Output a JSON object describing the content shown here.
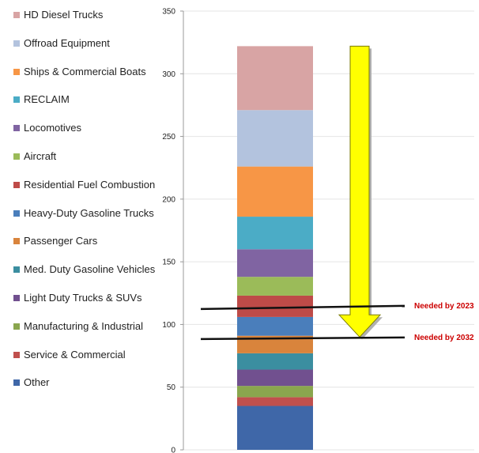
{
  "chart_data": {
    "type": "bar",
    "stacked": true,
    "categories": [
      ""
    ],
    "ylim": [
      0,
      350
    ],
    "yticks": [
      0,
      50,
      100,
      150,
      200,
      250,
      300,
      350
    ],
    "grid": true,
    "legend_position": "left",
    "series": [
      {
        "name": "Other",
        "values": [
          35
        ],
        "color": "#3f67a8"
      },
      {
        "name": "Service & Commercial",
        "values": [
          7
        ],
        "color": "#c0504d"
      },
      {
        "name": "Manufacturing & Industrial",
        "values": [
          9
        ],
        "color": "#8aa64e"
      },
      {
        "name": "Light Duty Trucks & SUVs",
        "values": [
          13
        ],
        "color": "#71508f"
      },
      {
        "name": "Med. Duty Gasoline Vehicles",
        "values": [
          13
        ],
        "color": "#3b8ea0"
      },
      {
        "name": "Passenger Cars",
        "values": [
          14
        ],
        "color": "#d9843c"
      },
      {
        "name": "Heavy-Duty Gasoline Trucks",
        "values": [
          15
        ],
        "color": "#4a7ebb"
      },
      {
        "name": "Residential Fuel Combustion",
        "values": [
          17
        ],
        "color": "#be4b48"
      },
      {
        "name": "Aircraft",
        "values": [
          15
        ],
        "color": "#9bbb59"
      },
      {
        "name": "Locomotives",
        "values": [
          22
        ],
        "color": "#8064a2"
      },
      {
        "name": "RECLAIM",
        "values": [
          26
        ],
        "color": "#4bacc6"
      },
      {
        "name": "Ships & Commercial Boats",
        "values": [
          40
        ],
        "color": "#f79646"
      },
      {
        "name": "Offroad Equipment",
        "values": [
          45
        ],
        "color": "#b3c3de"
      },
      {
        "name": "HD Diesel Trucks",
        "values": [
          51
        ],
        "color": "#d8a4a4"
      }
    ],
    "annotations": [
      {
        "label": "Needed by 2023",
        "value": 113,
        "color": "#cc0000"
      },
      {
        "label": "Needed by 2032",
        "value": 89,
        "color": "#cc0000"
      }
    ],
    "arrow": {
      "from": 322,
      "to": 90,
      "color": "#ffff00"
    }
  },
  "legend": [
    {
      "label": "HD Diesel Trucks",
      "color": "#d8a4a4"
    },
    {
      "label": "Offroad Equipment",
      "color": "#b3c3de"
    },
    {
      "label": "Ships & Commercial Boats",
      "color": "#f79646"
    },
    {
      "label": "RECLAIM",
      "color": "#4bacc6"
    },
    {
      "label": "Locomotives",
      "color": "#8064a2"
    },
    {
      "label": "Aircraft",
      "color": "#9bbb59"
    },
    {
      "label": "Residential Fuel Combustion",
      "color": "#be4b48"
    },
    {
      "label": "Heavy-Duty Gasoline Trucks",
      "color": "#4a7ebb"
    },
    {
      "label": "Passenger Cars",
      "color": "#d9843c"
    },
    {
      "label": "Med. Duty Gasoline Vehicles",
      "color": "#3b8ea0"
    },
    {
      "label": "Light Duty Trucks & SUVs",
      "color": "#71508f"
    },
    {
      "label": "Manufacturing & Industrial",
      "color": "#8aa64e"
    },
    {
      "label": "Service & Commercial",
      "color": "#c0504d"
    },
    {
      "label": "Other",
      "color": "#3f67a8"
    }
  ]
}
